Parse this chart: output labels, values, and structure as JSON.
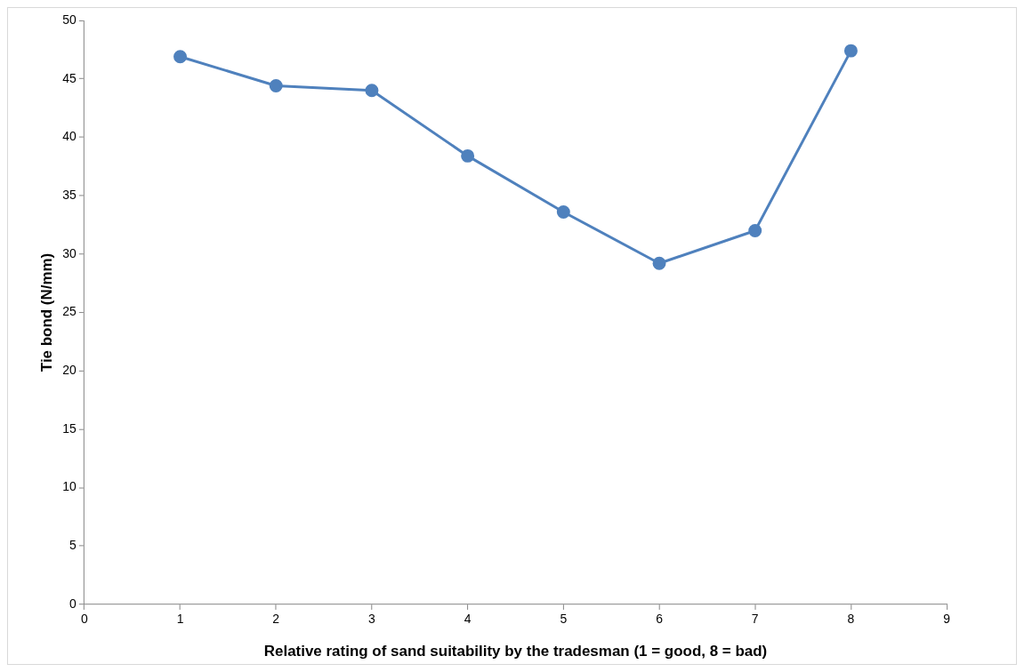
{
  "chart_data": {
    "type": "line",
    "xlabel": "Relative rating of sand suitability by the tradesman (1 = good, 8 = bad)",
    "ylabel": "Tie bond (N/mm)",
    "x": [
      1,
      2,
      3,
      4,
      5,
      6,
      7,
      8
    ],
    "series": [
      {
        "color": "#4f81bd",
        "values": [
          46.9,
          44.4,
          44.0,
          38.4,
          33.6,
          29.2,
          32.0,
          47.4
        ]
      }
    ],
    "xlim": [
      0,
      9
    ],
    "xticks": [
      0,
      1,
      2,
      3,
      4,
      5,
      6,
      7,
      8,
      9
    ],
    "ylim": [
      0,
      50
    ],
    "yticks": [
      0,
      5,
      10,
      15,
      20,
      25,
      30,
      35,
      40,
      45,
      50
    ],
    "grid": false,
    "legend": false,
    "marker": "circle",
    "line_style": "solid"
  }
}
